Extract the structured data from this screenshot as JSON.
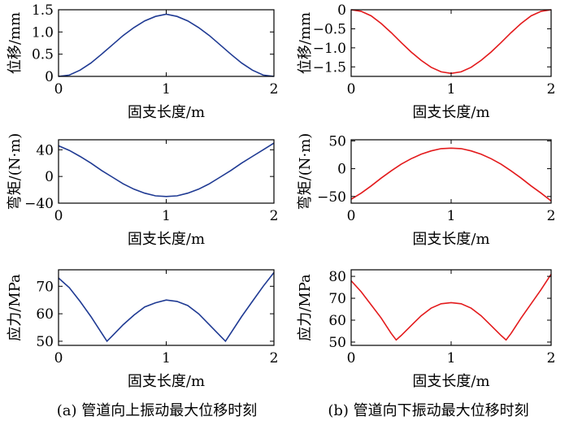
{
  "captions": {
    "left": "(a) 管道向上振动最大位移时刻",
    "right": "(b) 管道向下振动最大位移时刻"
  },
  "colors": {
    "up": "#1f3a93",
    "down": "#e31a1c"
  },
  "chart_data": [
    {
      "type": "line",
      "column": "left",
      "row": 0,
      "xlabel": "固支长度/m",
      "ylabel": "位移/mm",
      "xlim": [
        0,
        2
      ],
      "ylim": [
        0,
        1.5
      ],
      "xticks": [
        0,
        1,
        2
      ],
      "yticks": [
        0,
        0.5,
        1.0,
        1.5
      ],
      "ytick_labels": [
        "0",
        "0.5",
        "1.0",
        "1.5"
      ],
      "series": [
        {
          "color": "#1f3a93",
          "x": [
            0,
            0.1,
            0.2,
            0.3,
            0.4,
            0.5,
            0.6,
            0.7,
            0.8,
            0.9,
            1.0,
            1.1,
            1.2,
            1.3,
            1.4,
            1.5,
            1.6,
            1.7,
            1.8,
            1.9,
            2.0
          ],
          "y": [
            0,
            0.03,
            0.14,
            0.3,
            0.5,
            0.71,
            0.92,
            1.1,
            1.25,
            1.35,
            1.4,
            1.35,
            1.25,
            1.1,
            0.92,
            0.71,
            0.5,
            0.3,
            0.14,
            0.03,
            0
          ]
        }
      ]
    },
    {
      "type": "line",
      "column": "right",
      "row": 0,
      "xlabel": "固支长度/m",
      "ylabel": "位移/mm",
      "xlim": [
        0,
        2
      ],
      "ylim": [
        -1.75,
        0
      ],
      "xticks": [
        0,
        1,
        2
      ],
      "yticks": [
        -1.5,
        -1.0,
        -0.5,
        0
      ],
      "ytick_labels": [
        "−1.5",
        "−1.0",
        "−0.5",
        "0"
      ],
      "series": [
        {
          "color": "#e31a1c",
          "x": [
            0,
            0.1,
            0.2,
            0.3,
            0.4,
            0.5,
            0.6,
            0.7,
            0.8,
            0.9,
            1.0,
            1.1,
            1.2,
            1.3,
            1.4,
            1.5,
            1.6,
            1.7,
            1.8,
            1.9,
            2.0
          ],
          "y": [
            0,
            -0.04,
            -0.16,
            -0.36,
            -0.6,
            -0.86,
            -1.11,
            -1.33,
            -1.51,
            -1.63,
            -1.67,
            -1.63,
            -1.51,
            -1.33,
            -1.11,
            -0.86,
            -0.6,
            -0.36,
            -0.16,
            -0.04,
            0
          ]
        }
      ]
    },
    {
      "type": "line",
      "column": "left",
      "row": 1,
      "xlabel": "固支长度/m",
      "ylabel": "弯矩/(N·m)",
      "xlim": [
        0,
        2
      ],
      "ylim": [
        -40,
        55
      ],
      "xticks": [
        0,
        1,
        2
      ],
      "yticks": [
        -40,
        0,
        40
      ],
      "ytick_labels": [
        "−40",
        "0",
        "40"
      ],
      "series": [
        {
          "color": "#1f3a93",
          "x": [
            0,
            0.1,
            0.2,
            0.3,
            0.4,
            0.5,
            0.6,
            0.7,
            0.8,
            0.9,
            1.0,
            1.1,
            1.2,
            1.3,
            1.4,
            1.5,
            1.6,
            1.7,
            1.8,
            1.9,
            2.0
          ],
          "y": [
            46,
            39,
            30,
            20,
            9,
            -1,
            -11,
            -19,
            -25,
            -29,
            -30,
            -29,
            -25,
            -19,
            -11,
            -1,
            9,
            20,
            30,
            40,
            50
          ]
        }
      ]
    },
    {
      "type": "line",
      "column": "right",
      "row": 1,
      "xlabel": "固支长度/m",
      "ylabel": "弯矩/(N·m)",
      "xlim": [
        0,
        2
      ],
      "ylim": [
        -62,
        52
      ],
      "xticks": [
        0,
        1,
        2
      ],
      "yticks": [
        -50,
        0,
        50
      ],
      "ytick_labels": [
        "−50",
        "0",
        "50"
      ],
      "series": [
        {
          "color": "#e31a1c",
          "x": [
            0,
            0.1,
            0.2,
            0.3,
            0.4,
            0.5,
            0.6,
            0.7,
            0.8,
            0.9,
            1.0,
            1.1,
            1.2,
            1.3,
            1.4,
            1.5,
            1.6,
            1.7,
            1.8,
            1.9,
            2.0
          ],
          "y": [
            -55,
            -44,
            -31,
            -17,
            -4,
            8,
            18,
            26,
            32,
            36,
            37,
            36,
            32,
            26,
            18,
            8,
            -4,
            -17,
            -31,
            -44,
            -58
          ]
        }
      ]
    },
    {
      "type": "line",
      "column": "left",
      "row": 2,
      "xlabel": "固支长度/m",
      "ylabel": "应力/MPa",
      "xlim": [
        0,
        2
      ],
      "ylim": [
        47,
        50
      ],
      "xticks": [
        0,
        1,
        2
      ],
      "yticks": [
        50,
        60,
        70
      ],
      "ytick_labels": [
        "50",
        "60",
        "70"
      ],
      "series": [
        {
          "color": "#1f3a93",
          "x": [
            0,
            0.1,
            0.2,
            0.3,
            0.4,
            0.45,
            0.5,
            0.6,
            0.7,
            0.8,
            0.9,
            1.0,
            1.1,
            1.2,
            1.3,
            1.4,
            1.5,
            1.55,
            1.6,
            1.7,
            1.8,
            1.9,
            2.0
          ],
          "y": [
            73,
            69.5,
            64.5,
            59,
            53,
            50,
            52,
            56,
            59.5,
            62.5,
            64,
            65,
            64.5,
            63,
            60,
            56,
            52,
            50,
            53,
            59,
            64.5,
            70,
            75
          ]
        }
      ]
    },
    {
      "type": "line",
      "column": "right",
      "row": 2,
      "xlabel": "固支长度/m",
      "ylabel": "应力/MPa",
      "xlim": [
        0,
        2
      ],
      "ylim": [
        48.5,
        83
      ],
      "xticks": [
        0,
        1,
        2
      ],
      "yticks": [
        50,
        60,
        70,
        80
      ],
      "ytick_labels": [
        "50",
        "60",
        "70",
        "80"
      ],
      "series": [
        {
          "color": "#e31a1c",
          "x": [
            0,
            0.1,
            0.2,
            0.3,
            0.4,
            0.45,
            0.5,
            0.6,
            0.7,
            0.8,
            0.9,
            1.0,
            1.1,
            1.2,
            1.3,
            1.4,
            1.5,
            1.55,
            1.6,
            1.7,
            1.8,
            1.9,
            2.0
          ],
          "y": [
            78,
            73,
            67,
            61,
            54,
            51,
            53,
            57.5,
            62,
            65.5,
            67.5,
            68,
            67.5,
            65.5,
            62,
            57.5,
            53,
            51,
            54,
            61,
            67.5,
            74,
            81
          ]
        }
      ]
    }
  ]
}
